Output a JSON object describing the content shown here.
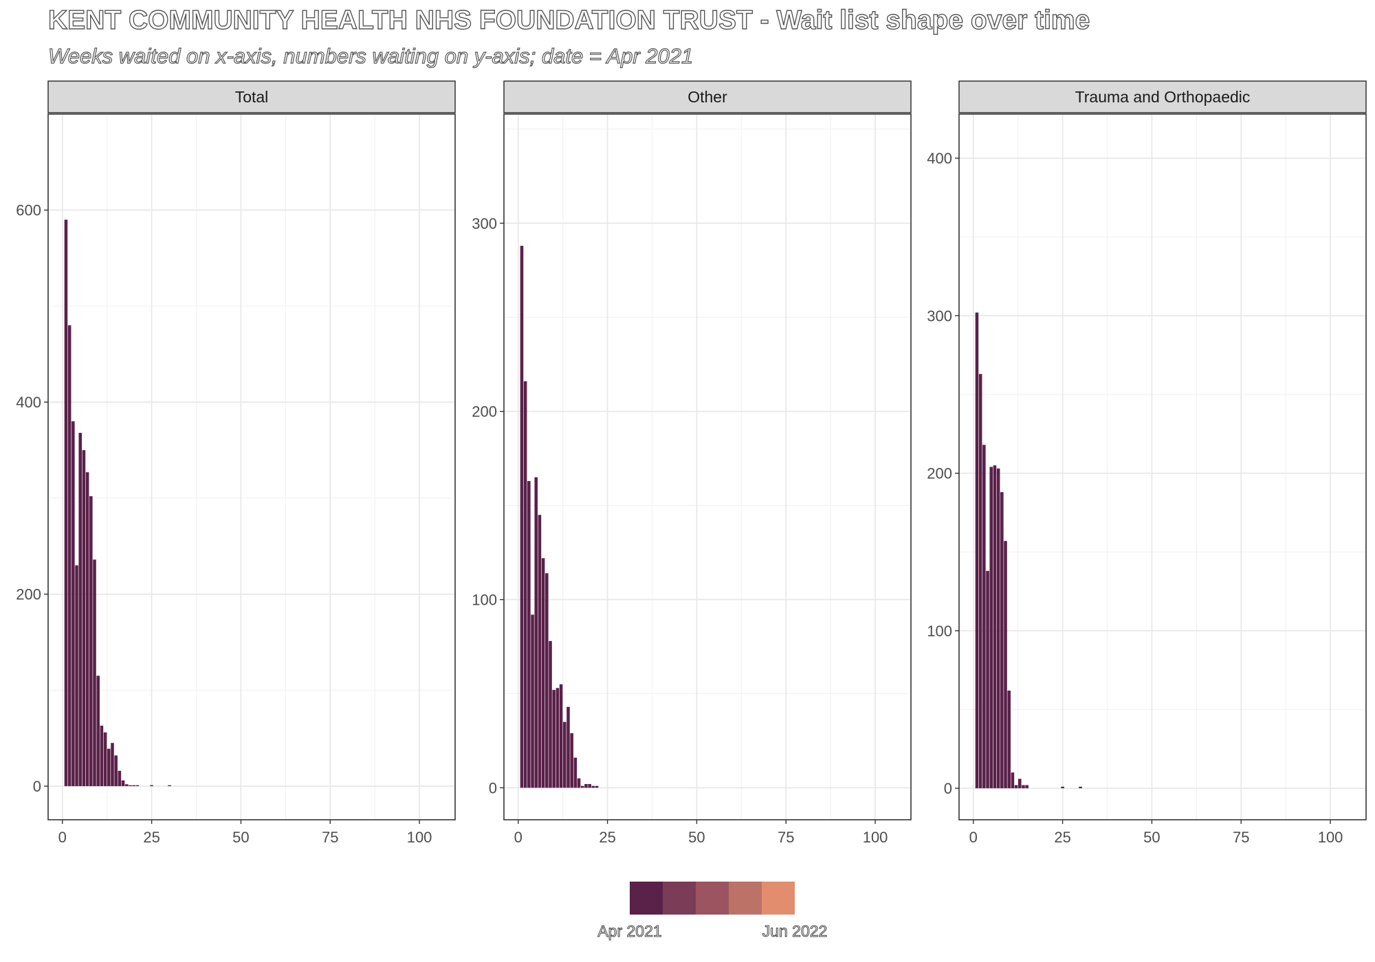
{
  "title": "KENT COMMUNITY HEALTH NHS FOUNDATION TRUST - Wait list shape over time",
  "subtitle": "Weeks waited on x-axis, numbers waiting on y-axis; date = Apr 2021",
  "legend": {
    "start_label": "Apr 2021",
    "end_label": "Jun 2022",
    "colors": [
      "#5a2149",
      "#7b3c57",
      "#9b5460",
      "#bd7268",
      "#e28e6e"
    ]
  },
  "chart_data": [
    {
      "type": "bar",
      "panel": "Total",
      "bar_color": "#5a2149",
      "grid": true,
      "xlim": [
        -4,
        110
      ],
      "ylim": [
        -35,
        700
      ],
      "xticks": [
        0,
        25,
        50,
        75,
        100
      ],
      "yticks": [
        0,
        200,
        400,
        600
      ],
      "x": [
        1,
        2,
        3,
        4,
        5,
        6,
        7,
        8,
        9,
        10,
        11,
        12,
        13,
        14,
        15,
        16,
        17,
        18,
        19,
        20,
        21,
        22,
        23,
        24,
        25,
        26,
        27,
        28,
        29,
        30
      ],
      "values": [
        590,
        480,
        380,
        230,
        368,
        350,
        327,
        302,
        236,
        115,
        63,
        56,
        39,
        45,
        32,
        16,
        6,
        2,
        1,
        1,
        1,
        0,
        0,
        0,
        1,
        0,
        0,
        0,
        0,
        1
      ]
    },
    {
      "type": "bar",
      "panel": "Other",
      "bar_color": "#5a2149",
      "grid": true,
      "xlim": [
        -4,
        110
      ],
      "ylim": [
        -17,
        358
      ],
      "xticks": [
        0,
        25,
        50,
        75,
        100
      ],
      "yticks": [
        0,
        100,
        200,
        300
      ],
      "x": [
        1,
        2,
        3,
        4,
        5,
        6,
        7,
        8,
        9,
        10,
        11,
        12,
        13,
        14,
        15,
        16,
        17,
        18,
        19,
        20,
        21,
        22
      ],
      "values": [
        288,
        216,
        163,
        92,
        165,
        145,
        122,
        114,
        78,
        52,
        53,
        55,
        35,
        43,
        29,
        16,
        5,
        1,
        2,
        2,
        1,
        1
      ]
    },
    {
      "type": "bar",
      "panel": "Trauma and Orthopaedic",
      "bar_color": "#5a2149",
      "grid": true,
      "xlim": [
        -4,
        110
      ],
      "ylim": [
        -20,
        428
      ],
      "xticks": [
        0,
        25,
        50,
        75,
        100
      ],
      "yticks": [
        0,
        100,
        200,
        300,
        400
      ],
      "x": [
        1,
        2,
        3,
        4,
        5,
        6,
        7,
        8,
        9,
        10,
        11,
        12,
        13,
        14,
        15,
        16,
        17,
        18,
        19,
        20,
        21,
        22,
        23,
        24,
        25,
        26,
        27,
        28,
        29,
        30
      ],
      "values": [
        302,
        263,
        218,
        138,
        204,
        205,
        203,
        188,
        157,
        62,
        10,
        2,
        6,
        2,
        2,
        0,
        0,
        0,
        0,
        0,
        0,
        0,
        0,
        0,
        1,
        0,
        0,
        0,
        0,
        1
      ]
    }
  ]
}
